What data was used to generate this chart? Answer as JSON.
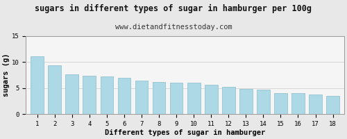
{
  "title": "sugars in different types of sugar in hamburger per 100g",
  "subtitle": "www.dietandfitnesstoday.com",
  "xlabel": "Different types of sugar in hamburger",
  "ylabel": "sugars (g)",
  "categories": [
    1,
    2,
    3,
    4,
    5,
    6,
    7,
    8,
    9,
    10,
    11,
    12,
    13,
    14,
    15,
    16,
    17,
    18
  ],
  "values": [
    11.1,
    9.3,
    7.6,
    7.3,
    7.2,
    7.0,
    6.4,
    6.1,
    6.0,
    6.0,
    5.7,
    5.2,
    4.9,
    4.7,
    4.1,
    4.0,
    3.8,
    3.5
  ],
  "bar_color": "#add8e6",
  "bar_edge_color": "#8bbccc",
  "ylim": [
    0,
    15
  ],
  "yticks": [
    0,
    5,
    10,
    15
  ],
  "background_color": "#e8e8e8",
  "plot_background_color": "#f5f5f5",
  "title_fontsize": 8.5,
  "subtitle_fontsize": 7.5,
  "axis_label_fontsize": 7.5,
  "tick_fontsize": 6.5,
  "bar_width": 0.75
}
